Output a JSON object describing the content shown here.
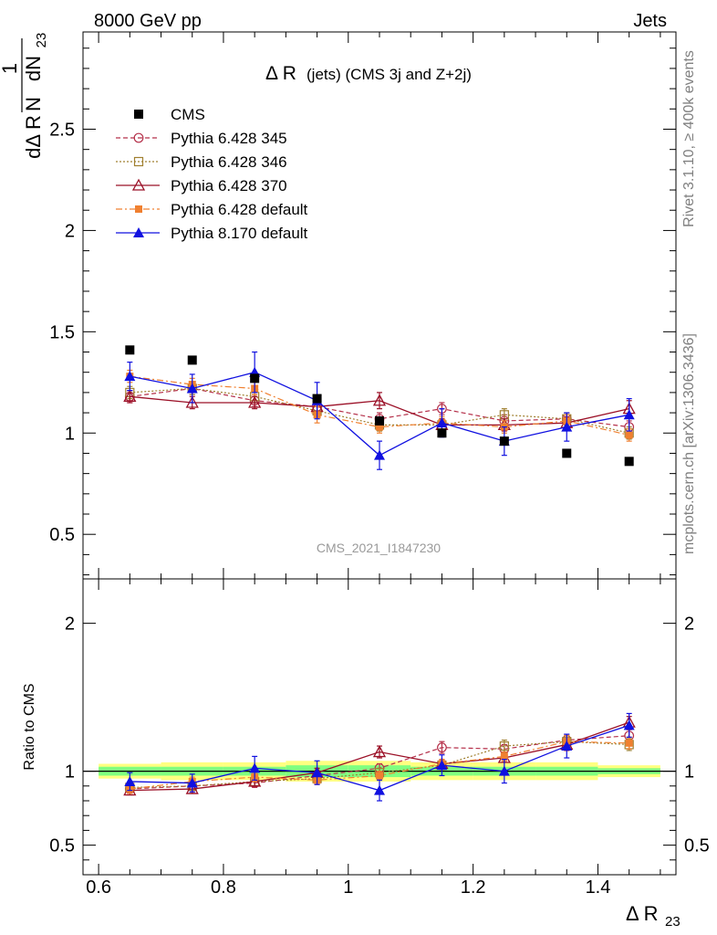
{
  "header": {
    "energy_label": "8000 GeV pp",
    "category_label": "Jets"
  },
  "side_labels": {
    "rivet": "Rivet 3.1.10, ≥ 400k events",
    "mcplots": "mcplots.cern.ch [arXiv:1306.3436]"
  },
  "watermark": "CMS_2021_I1847230",
  "ratio_ylabel": "Ratio to CMS",
  "colors": {
    "cms": "#000000",
    "p345": "#b5304a",
    "p346": "#a08030",
    "p370": "#9b1027",
    "p6def": "#f08030",
    "p8def": "#1010e0",
    "band_yellow": "#ffff80",
    "band_green": "#80ff80"
  },
  "chart_data": {
    "type": "scatter",
    "title": "Δ R (jets) (CMS 3j and Z+2j)",
    "title_main": "Δ R",
    "title_sub": "(jets) (CMS 3j and Z+2j)",
    "ylabel": "1/N dN/dΔ R23",
    "ylabel_parts": {
      "one": "1",
      "N": "N",
      "dN": "dN",
      "dDR": "dΔ R",
      "sub": "23"
    },
    "xlabel": "Δ R23",
    "xlabel_main": "Δ R",
    "xlabel_sub": "23",
    "xlim": [
      0.575,
      1.525
    ],
    "ylim": [
      0.28,
      2.98
    ],
    "ratio_ylim": [
      0.3,
      2.3
    ],
    "xticks": [
      "0.6",
      "0.8",
      "1",
      "1.2",
      "1.4"
    ],
    "yticks": [
      "0.5",
      "1",
      "1.5",
      "2",
      "2.5"
    ],
    "ratio_yticks": [
      "0.5",
      "1",
      "2"
    ],
    "legend_position": "top-left",
    "x": [
      0.65,
      0.75,
      0.85,
      0.95,
      1.05,
      1.15,
      1.25,
      1.35,
      1.45
    ],
    "series": [
      {
        "name": "CMS",
        "key": "cms",
        "values": [
          1.41,
          1.36,
          1.27,
          1.17,
          1.06,
          1.0,
          0.96,
          0.9,
          0.86
        ],
        "errors": [
          0.01,
          0.01,
          0.01,
          0.01,
          0.01,
          0.01,
          0.01,
          0.01,
          0.01
        ]
      },
      {
        "name": "Pythia 6.428 345",
        "key": "p345",
        "values": [
          1.18,
          1.22,
          1.16,
          1.13,
          1.07,
          1.12,
          1.06,
          1.07,
          1.03
        ],
        "errors": [
          0.03,
          0.03,
          0.03,
          0.03,
          0.03,
          0.03,
          0.03,
          0.03,
          0.03
        ]
      },
      {
        "name": "Pythia 6.428 346",
        "key": "p346",
        "values": [
          1.2,
          1.22,
          1.18,
          1.11,
          1.04,
          1.04,
          1.09,
          1.07,
          1.0
        ],
        "errors": [
          0.03,
          0.03,
          0.03,
          0.03,
          0.03,
          0.03,
          0.03,
          0.03,
          0.03
        ]
      },
      {
        "name": "Pythia 6.428 370",
        "key": "p370",
        "values": [
          1.18,
          1.15,
          1.15,
          1.13,
          1.16,
          1.04,
          1.04,
          1.05,
          1.12
        ],
        "errors": [
          0.03,
          0.03,
          0.03,
          0.03,
          0.04,
          0.03,
          0.03,
          0.03,
          0.04
        ]
      },
      {
        "name": "Pythia 6.428 default",
        "key": "p6def",
        "values": [
          1.28,
          1.24,
          1.22,
          1.09,
          1.03,
          1.05,
          1.03,
          1.06,
          0.99
        ],
        "errors": [
          0.03,
          0.03,
          0.03,
          0.04,
          0.03,
          0.03,
          0.03,
          0.03,
          0.03
        ]
      },
      {
        "name": "Pythia 8.170 default",
        "key": "p8def",
        "values": [
          1.28,
          1.22,
          1.3,
          1.16,
          0.89,
          1.05,
          0.96,
          1.03,
          1.09
        ],
        "errors": [
          0.07,
          0.07,
          0.1,
          0.09,
          0.07,
          0.07,
          0.07,
          0.07,
          0.08
        ]
      }
    ],
    "ratio": {
      "band_yellow_halfwidth": [
        0.05,
        0.06,
        0.06,
        0.07,
        0.07,
        0.06,
        0.06,
        0.06,
        0.04
      ],
      "band_green_halfwidth": [
        0.03,
        0.03,
        0.03,
        0.04,
        0.04,
        0.03,
        0.03,
        0.03,
        0.02
      ],
      "series": [
        {
          "key": "p345",
          "values": [
            0.88,
            0.9,
            0.92,
            0.97,
            1.02,
            1.16,
            1.15,
            1.21,
            1.24
          ],
          "errors": [
            0.03,
            0.03,
            0.03,
            0.03,
            0.03,
            0.04,
            0.03,
            0.04,
            0.04
          ]
        },
        {
          "key": "p346",
          "values": [
            0.89,
            0.9,
            0.93,
            0.95,
            0.99,
            1.04,
            1.17,
            1.2,
            1.18
          ],
          "errors": [
            0.03,
            0.03,
            0.03,
            0.03,
            0.03,
            0.03,
            0.04,
            0.04,
            0.04
          ]
        },
        {
          "key": "p370",
          "values": [
            0.87,
            0.88,
            0.93,
            0.99,
            1.13,
            1.05,
            1.09,
            1.18,
            1.33
          ],
          "errors": [
            0.03,
            0.03,
            0.03,
            0.03,
            0.04,
            0.03,
            0.03,
            0.04,
            0.04
          ]
        },
        {
          "key": "p6def",
          "values": [
            0.88,
            0.93,
            0.96,
            0.94,
            0.97,
            1.05,
            1.1,
            1.2,
            1.19
          ],
          "errors": [
            0.03,
            0.03,
            0.03,
            0.03,
            0.03,
            0.03,
            0.03,
            0.04,
            0.04
          ]
        },
        {
          "key": "p8def",
          "values": [
            0.93,
            0.92,
            1.02,
            0.99,
            0.87,
            1.04,
            1.0,
            1.17,
            1.31
          ],
          "errors": [
            0.06,
            0.06,
            0.08,
            0.08,
            0.07,
            0.07,
            0.08,
            0.08,
            0.08
          ]
        }
      ]
    }
  }
}
